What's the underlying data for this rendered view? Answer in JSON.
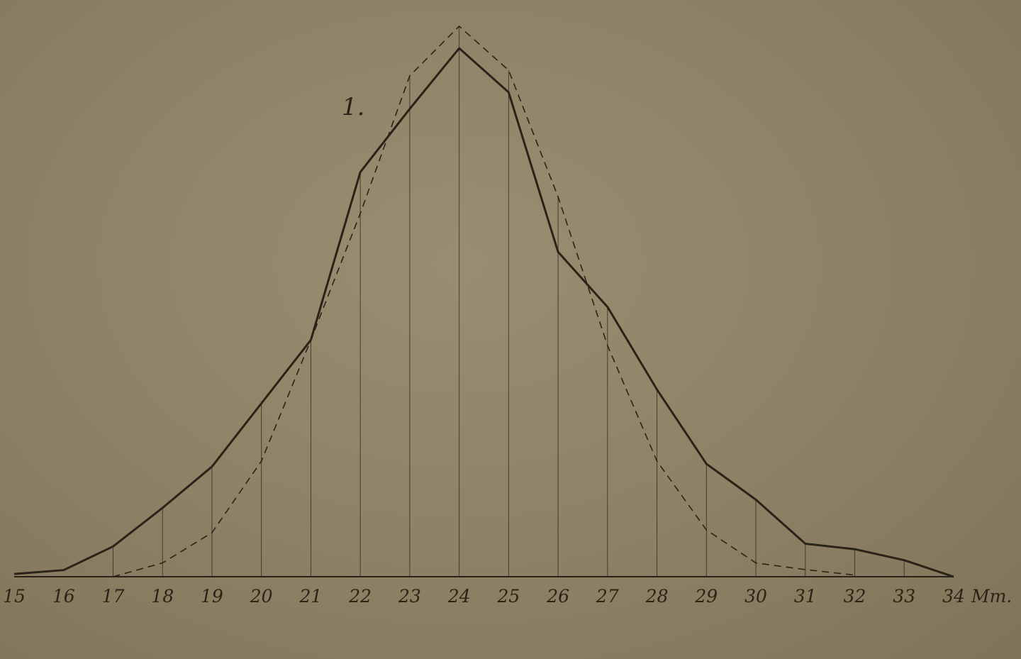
{
  "chart_data": {
    "type": "line",
    "title": "",
    "xlabel": "",
    "ylabel": "",
    "x_unit_label": "Mm.",
    "curve_label": "1.",
    "x": [
      15,
      16,
      17,
      18,
      19,
      20,
      21,
      22,
      23,
      24,
      25,
      26,
      27,
      28,
      29,
      30,
      31,
      32,
      33,
      34
    ],
    "x_tick_labels": [
      "15",
      "16",
      "17",
      "18",
      "19",
      "20",
      "21",
      "22",
      "23",
      "24",
      "25",
      "26",
      "27",
      "28",
      "29",
      "30",
      "31",
      "32",
      "33",
      "34"
    ],
    "xlim": [
      15,
      34
    ],
    "ylim": [
      0,
      100
    ],
    "grid": false,
    "series": [
      {
        "style": "solid",
        "values": [
          0.5,
          1.2,
          5.5,
          12.5,
          20.0,
          31.5,
          43.0,
          73.5,
          85.0,
          96.0,
          88.0,
          59.0,
          49.0,
          34.0,
          20.5,
          14.0,
          6.0,
          5.0,
          3.0,
          0
        ]
      },
      {
        "style": "dashed",
        "values": [
          null,
          null,
          0,
          2.5,
          8.0,
          21.0,
          43.0,
          66.0,
          91.0,
          100.0,
          92.0,
          69.0,
          42.0,
          21.0,
          8.5,
          2.5,
          1.3,
          0.3,
          null,
          null
        ]
      }
    ],
    "colors": {
      "ink": "#2a2418",
      "paper": "#8f8366"
    }
  }
}
